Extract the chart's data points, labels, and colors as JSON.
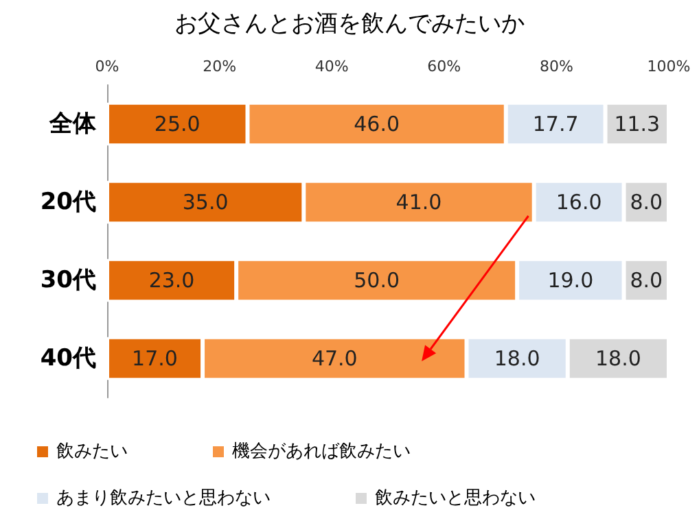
{
  "chart_data": {
    "type": "bar",
    "orientation": "horizontal",
    "stacked": true,
    "title": "お父さんとお酒を飲んでみたいか",
    "categories": [
      "全体",
      "20代",
      "30代",
      "40代"
    ],
    "series": [
      {
        "name": "飲みたい",
        "color": "#e46c0a",
        "values": [
          25.0,
          35.0,
          23.0,
          17.0
        ],
        "value_labels": [
          "25.0",
          "35.0",
          "23.0",
          "17.0"
        ]
      },
      {
        "name": "機会があれば飲みたい",
        "color": "#f79646",
        "values": [
          46.0,
          41.0,
          50.0,
          47.0
        ],
        "value_labels": [
          "46.0",
          "41.0",
          "50.0",
          "47.0"
        ]
      },
      {
        "name": "あまり飲みたいと思わない",
        "color": "#dce6f2",
        "values": [
          17.7,
          16.0,
          19.0,
          18.0
        ],
        "value_labels": [
          "17.7",
          "16.0",
          "19.0",
          "18.0"
        ]
      },
      {
        "name": "飲みたいと思わない",
        "color": "#d9d9d9",
        "values": [
          11.3,
          8.0,
          8.0,
          18.0
        ],
        "value_labels": [
          "11.3",
          "8.0",
          "8.0",
          "18.0"
        ]
      }
    ],
    "xlim": [
      0,
      100
    ],
    "xticks": [
      {
        "value": 0,
        "label": "0%"
      },
      {
        "value": 20,
        "label": "20%"
      },
      {
        "value": 40,
        "label": "40%"
      },
      {
        "value": 60,
        "label": "60%"
      },
      {
        "value": 80,
        "label": "80%"
      },
      {
        "value": 100,
        "label": "100%"
      }
    ],
    "grid": false,
    "legend": "bottom"
  }
}
